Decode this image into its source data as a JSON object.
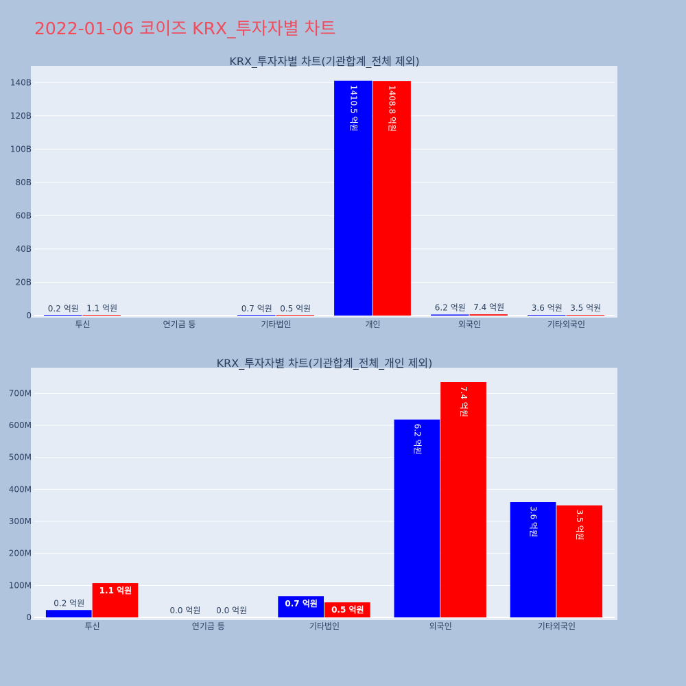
{
  "page_title": "2022-01-06 코이즈 KRX_투자자별 차트",
  "colors": {
    "background": "#b0c4de",
    "plot_bg": "#e5ecf6",
    "title": "#ef4c5c",
    "series_a": "#0000ff",
    "series_b": "#ff0000",
    "text": "#2a3f5f"
  },
  "chart_data": [
    {
      "type": "bar",
      "title": "KRX_투자자별 차트(기관합계_전체 제외)",
      "categories": [
        "투신",
        "연기금 등",
        "기타법인",
        "개인",
        "외국인",
        "기타외국인"
      ],
      "series": [
        {
          "color": "#0000ff",
          "values": [
            23000000,
            null,
            66000000,
            141050000000,
            618000000,
            360000000
          ],
          "labels": [
            "0.2 억원",
            "",
            "0.7 억원",
            "1410.5 억원",
            "6.2 억원",
            "3.6 억원"
          ]
        },
        {
          "color": "#ff0000",
          "values": [
            107000000,
            null,
            47000000,
            140880000000,
            735000000,
            350000000
          ],
          "labels": [
            "1.1 억원",
            "",
            "0.5 억원",
            "1408.8 억원",
            "7.4 억원",
            "3.5 억원"
          ]
        }
      ],
      "ylim": [
        0,
        150000000000
      ],
      "yticks": [
        0,
        20000000000,
        40000000000,
        60000000000,
        80000000000,
        100000000000,
        120000000000,
        140000000000
      ],
      "ytick_labels": [
        "0",
        "20B",
        "40B",
        "60B",
        "80B",
        "100B",
        "120B",
        "140B"
      ],
      "grid": true
    },
    {
      "type": "bar",
      "title": "KRX_투자자별 차트(기관합계_전체_개인 제외)",
      "categories": [
        "투신",
        "연기금 등",
        "기타법인",
        "외국인",
        "기타외국인"
      ],
      "series": [
        {
          "color": "#0000ff",
          "values": [
            23000000,
            0,
            66000000,
            618000000,
            360000000
          ],
          "labels": [
            "0.2 억원",
            "0.0 억원",
            "0.7 억원",
            "6.2 억원",
            "3.6 억원"
          ]
        },
        {
          "color": "#ff0000",
          "values": [
            107000000,
            0,
            47000000,
            735000000,
            350000000
          ],
          "labels": [
            "1.1 억원",
            "0.0 억원",
            "0.5 억원",
            "7.4 억원",
            "3.5 억원"
          ]
        }
      ],
      "ylim": [
        0,
        780000000
      ],
      "yticks": [
        0,
        100000000,
        200000000,
        300000000,
        400000000,
        500000000,
        600000000,
        700000000
      ],
      "ytick_labels": [
        "0",
        "100M",
        "200M",
        "300M",
        "400M",
        "500M",
        "600M",
        "700M"
      ],
      "grid": true
    }
  ]
}
